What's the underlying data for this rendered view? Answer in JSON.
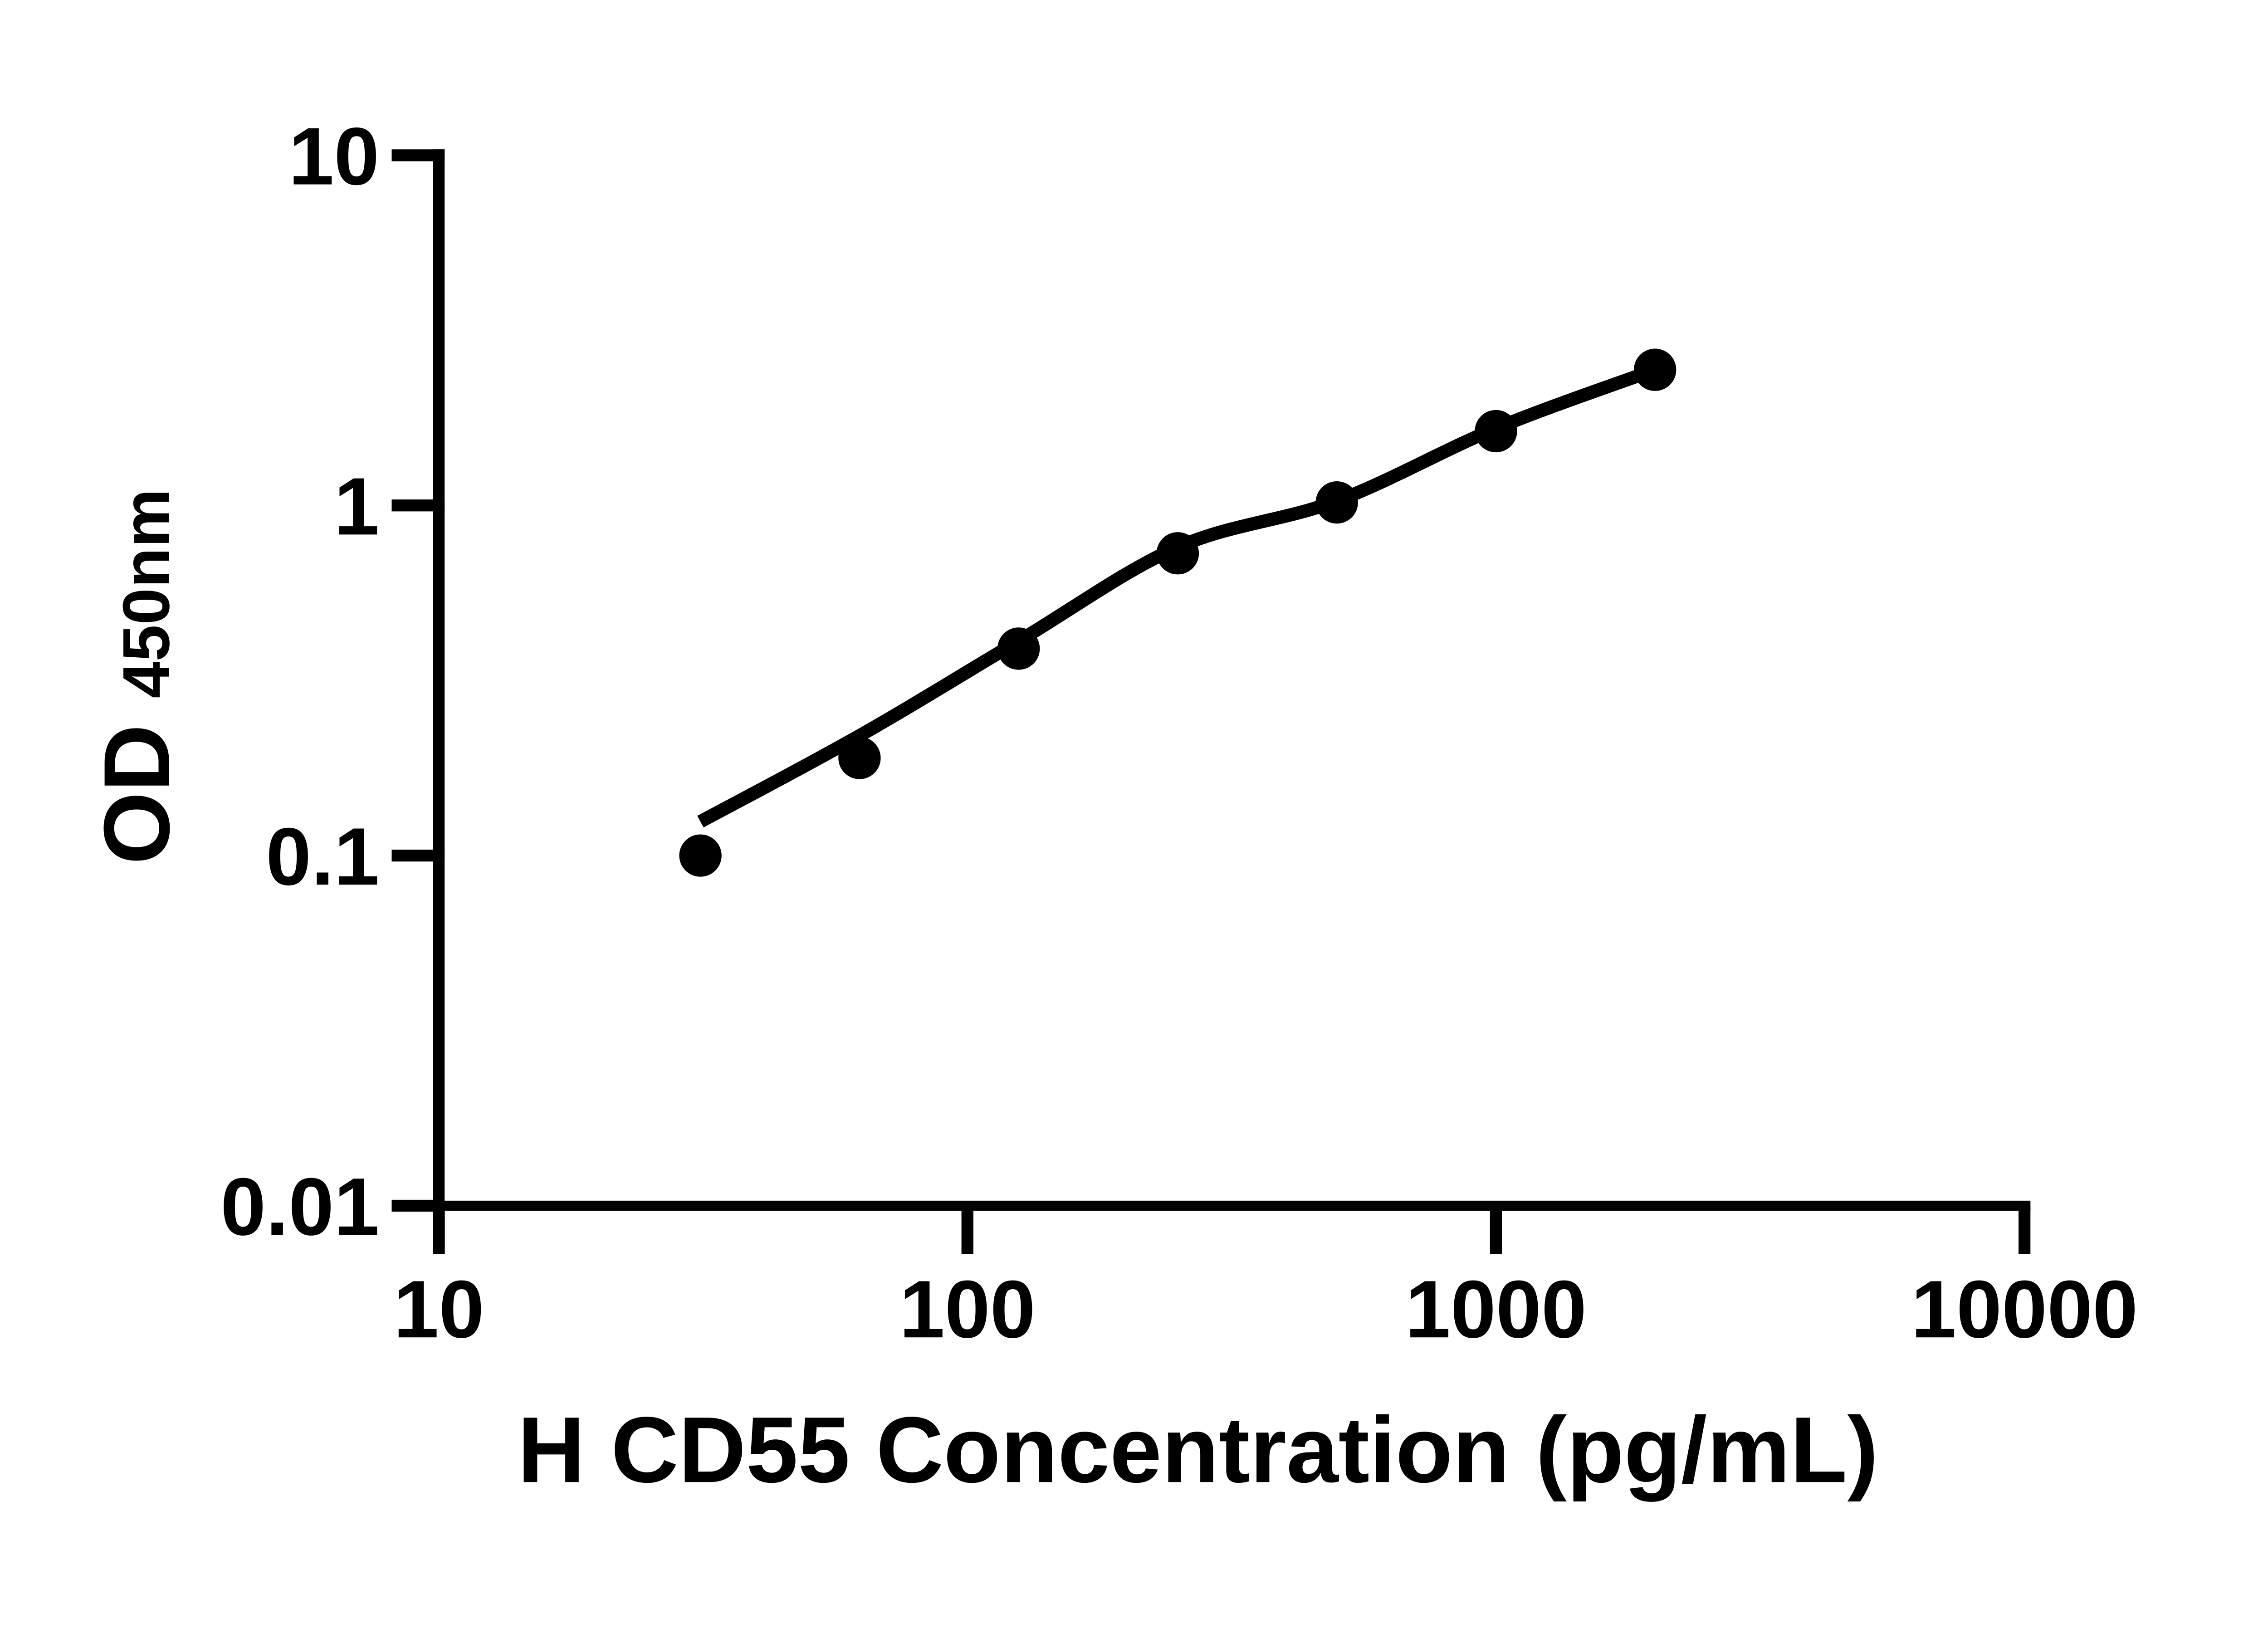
{
  "page": {
    "background": "#ffffff",
    "foreground": "#000000"
  },
  "chart_data": {
    "type": "scatter",
    "title": "",
    "xlabel": "H CD55 Concentration (pg/mL)",
    "ylabel": "OD",
    "ylabel_subscript": "450nm",
    "x_scale": "log",
    "y_scale": "log",
    "xlim": [
      10,
      10000
    ],
    "ylim": [
      0.01,
      10
    ],
    "x_ticks": [
      "10",
      "100",
      "1000",
      "10000"
    ],
    "y_ticks": [
      "10",
      "1",
      "0.1",
      "0.01"
    ],
    "grid": "off",
    "legend": "none",
    "series": [
      {
        "name": "standard-points",
        "x": [
          31.25,
          62.5,
          125,
          250,
          500,
          1000,
          2000
        ],
        "od": [
          0.1,
          0.19,
          0.39,
          0.73,
          1.02,
          1.63,
          2.44
        ]
      }
    ],
    "fit_curve": {
      "name": "fitted-line",
      "x": [
        31.25,
        62.5,
        125,
        250,
        500,
        1000,
        2000
      ],
      "od": [
        0.125,
        0.22,
        0.41,
        0.76,
        1.03,
        1.66,
        2.44
      ]
    },
    "marker_color": "#000000",
    "line_color": "#000000",
    "axis_color": "#000000"
  }
}
